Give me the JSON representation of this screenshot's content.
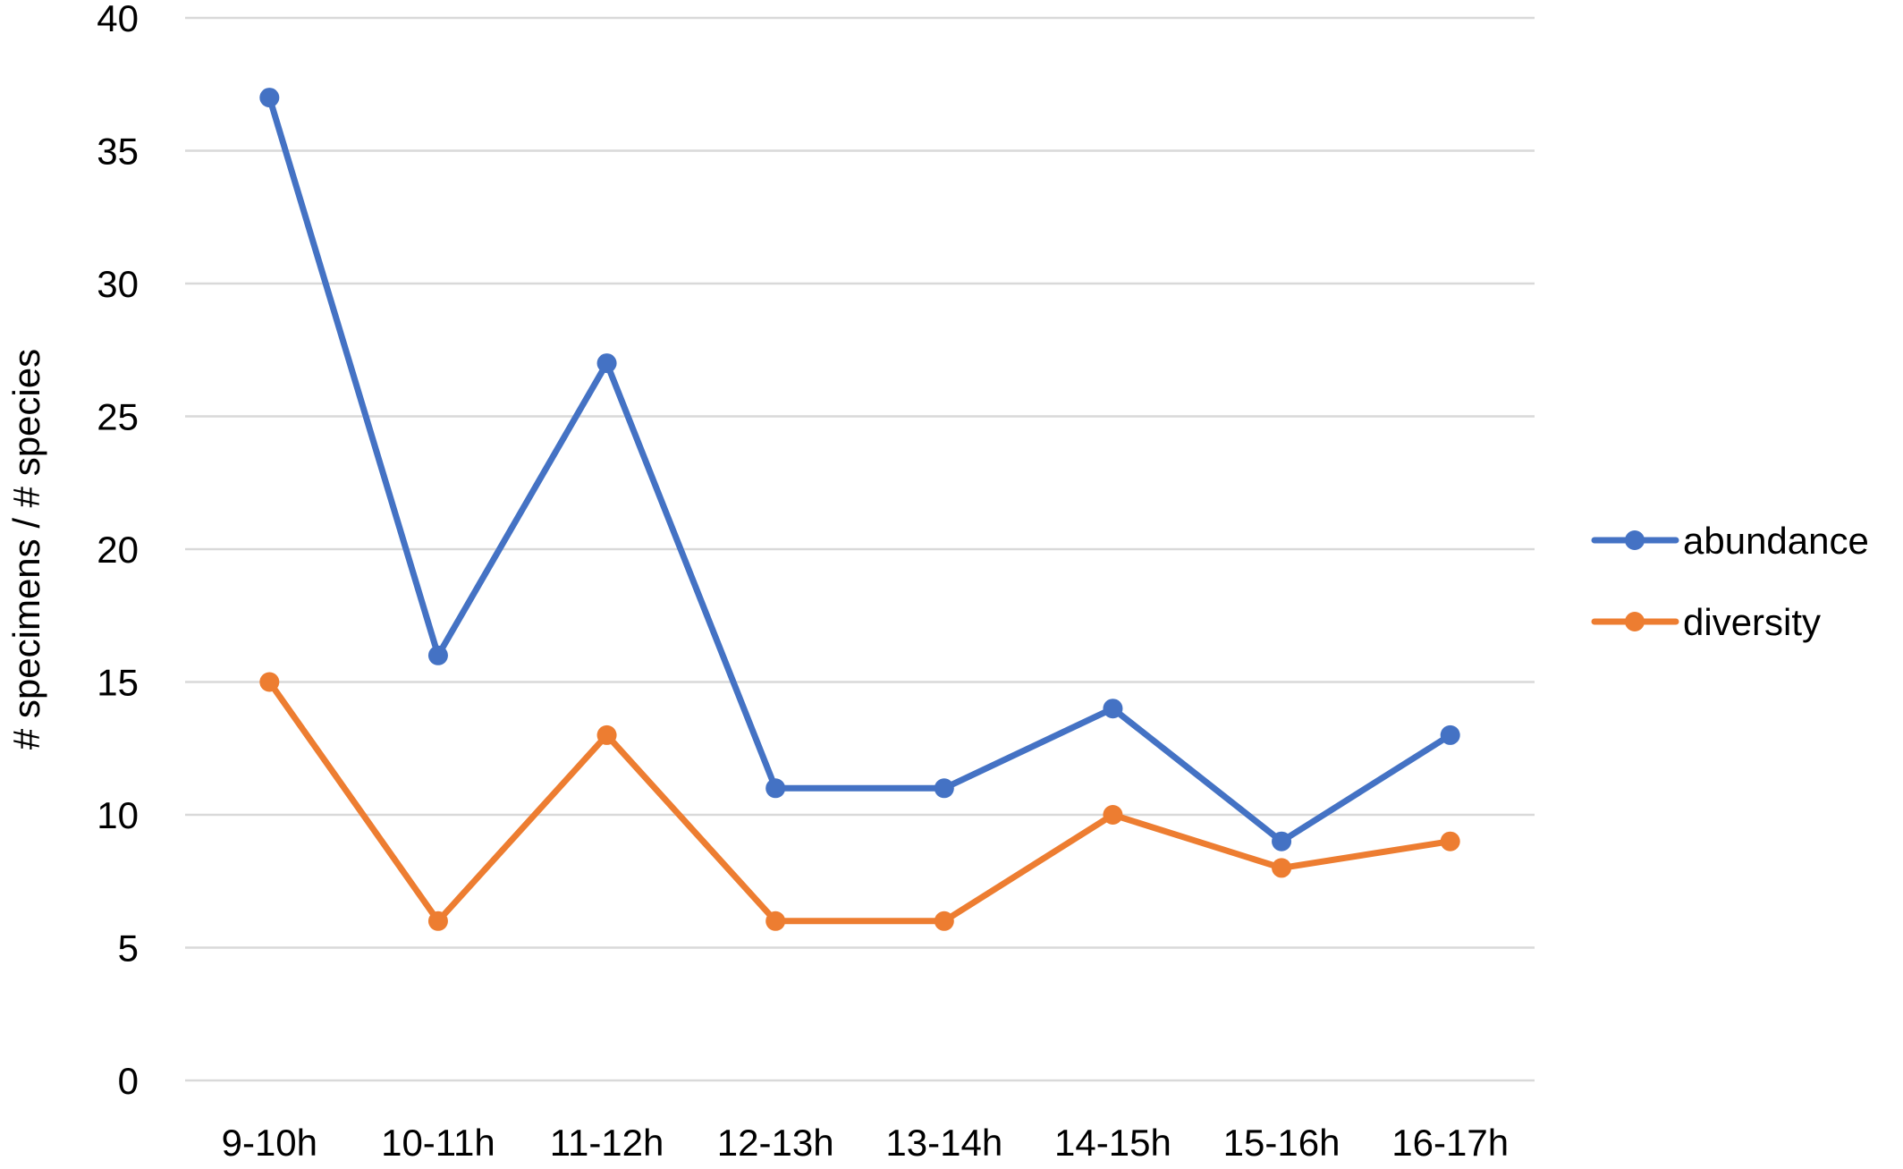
{
  "chart_data": {
    "type": "line",
    "title": "",
    "xlabel": "",
    "ylabel": "# specimens / # species",
    "ylim": [
      0,
      40
    ],
    "yticks": [
      0,
      5,
      10,
      15,
      20,
      25,
      30,
      35,
      40
    ],
    "grid": true,
    "legend": "right",
    "categories": [
      "9-10h",
      "10-11h",
      "11-12h",
      "12-13h",
      "13-14h",
      "14-15h",
      "15-16h",
      "16-17h"
    ],
    "series": [
      {
        "name": "abundance",
        "color": "#4472c4",
        "values": [
          37,
          16,
          27,
          11,
          11,
          14,
          9,
          13
        ]
      },
      {
        "name": "diversity",
        "color": "#ed7d31",
        "values": [
          15,
          6,
          13,
          6,
          6,
          10,
          8,
          9
        ]
      }
    ]
  }
}
